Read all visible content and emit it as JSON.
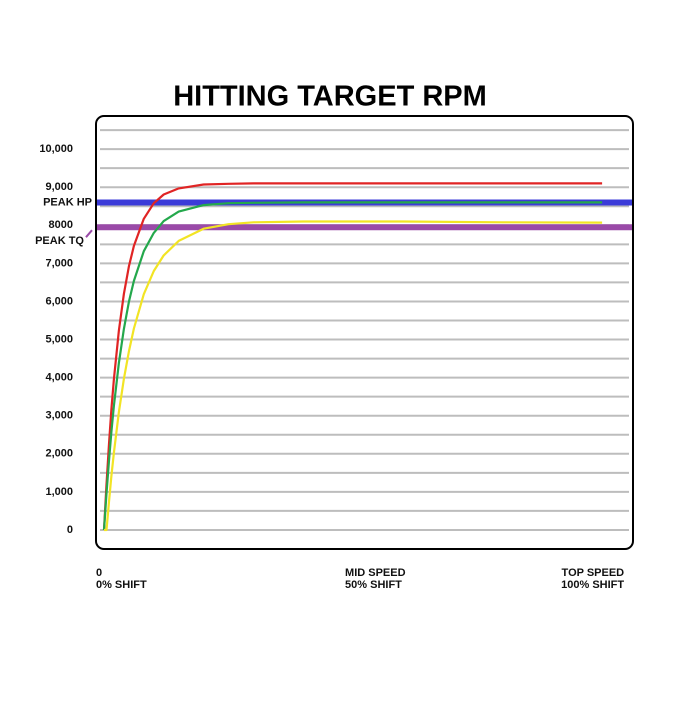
{
  "chart_data": {
    "type": "line",
    "title": "HITTING TARGET RPM",
    "x": [
      0,
      0.5,
      1,
      1.5,
      2,
      3,
      4,
      5,
      6,
      8,
      10,
      12,
      15,
      20,
      25,
      30,
      40,
      50,
      60,
      80,
      100
    ],
    "series": [
      {
        "color": "#e02424",
        "values": [
          0,
          1200,
          2260,
          3170,
          3960,
          5240,
          6200,
          6920,
          7460,
          8170,
          8580,
          8810,
          8970,
          9070,
          9090,
          9100,
          9100,
          9100,
          9100,
          9100,
          9100
        ]
      },
      {
        "color": "#24a84c",
        "values": [
          0,
          960,
          1820,
          2580,
          3260,
          4390,
          5280,
          5990,
          6540,
          7320,
          7800,
          8110,
          8360,
          8530,
          8580,
          8590,
          8600,
          8600,
          8600,
          8600,
          8600
        ]
      },
      {
        "color": "#f2e424",
        "values": [
          0,
          0,
          745,
          1420,
          2030,
          3100,
          3970,
          4690,
          5290,
          6190,
          6800,
          7210,
          7590,
          7910,
          8030,
          8080,
          8100,
          8100,
          8100,
          8080,
          8070
        ]
      }
    ],
    "reference_lines": [
      {
        "name": "PEAK HP",
        "value": 8600,
        "color": "#3b3bd8"
      },
      {
        "name": "PEAK TQ",
        "value": 7950,
        "color": "#9a4aa8"
      }
    ],
    "xlim": [
      -1.6,
      106.2
    ],
    "xticks": [
      {
        "value": 0,
        "label": [
          "0",
          "0% SHIFT"
        ]
      },
      {
        "value": 50,
        "label": [
          "MID SPEED",
          "50% SHIFT"
        ]
      },
      {
        "value": 100,
        "label": [
          "TOP SPEED",
          "100% SHIFT"
        ]
      }
    ],
    "ylim": [
      -500,
      10870
    ],
    "yticks": [
      0,
      {
        "value": 1000,
        "label": "1,000"
      },
      {
        "value": 2000,
        "label": "2,000"
      },
      {
        "value": 3000,
        "label": "3,000"
      },
      {
        "value": 4000,
        "label": "4,000"
      },
      {
        "value": 5000,
        "label": "5,000"
      },
      {
        "value": 6000,
        "label": "6,000"
      },
      {
        "value": 7000,
        "label": "7,000"
      },
      {
        "value": 8000,
        "label": "8000"
      },
      {
        "value": 9000,
        "label": "9,000"
      },
      {
        "value": 10000,
        "label": "10,000"
      }
    ],
    "minor_yticks": [
      500,
      1500,
      2500,
      3500,
      4500,
      5500,
      6500,
      7500,
      8500,
      9500,
      10500
    ],
    "grid": true
  }
}
